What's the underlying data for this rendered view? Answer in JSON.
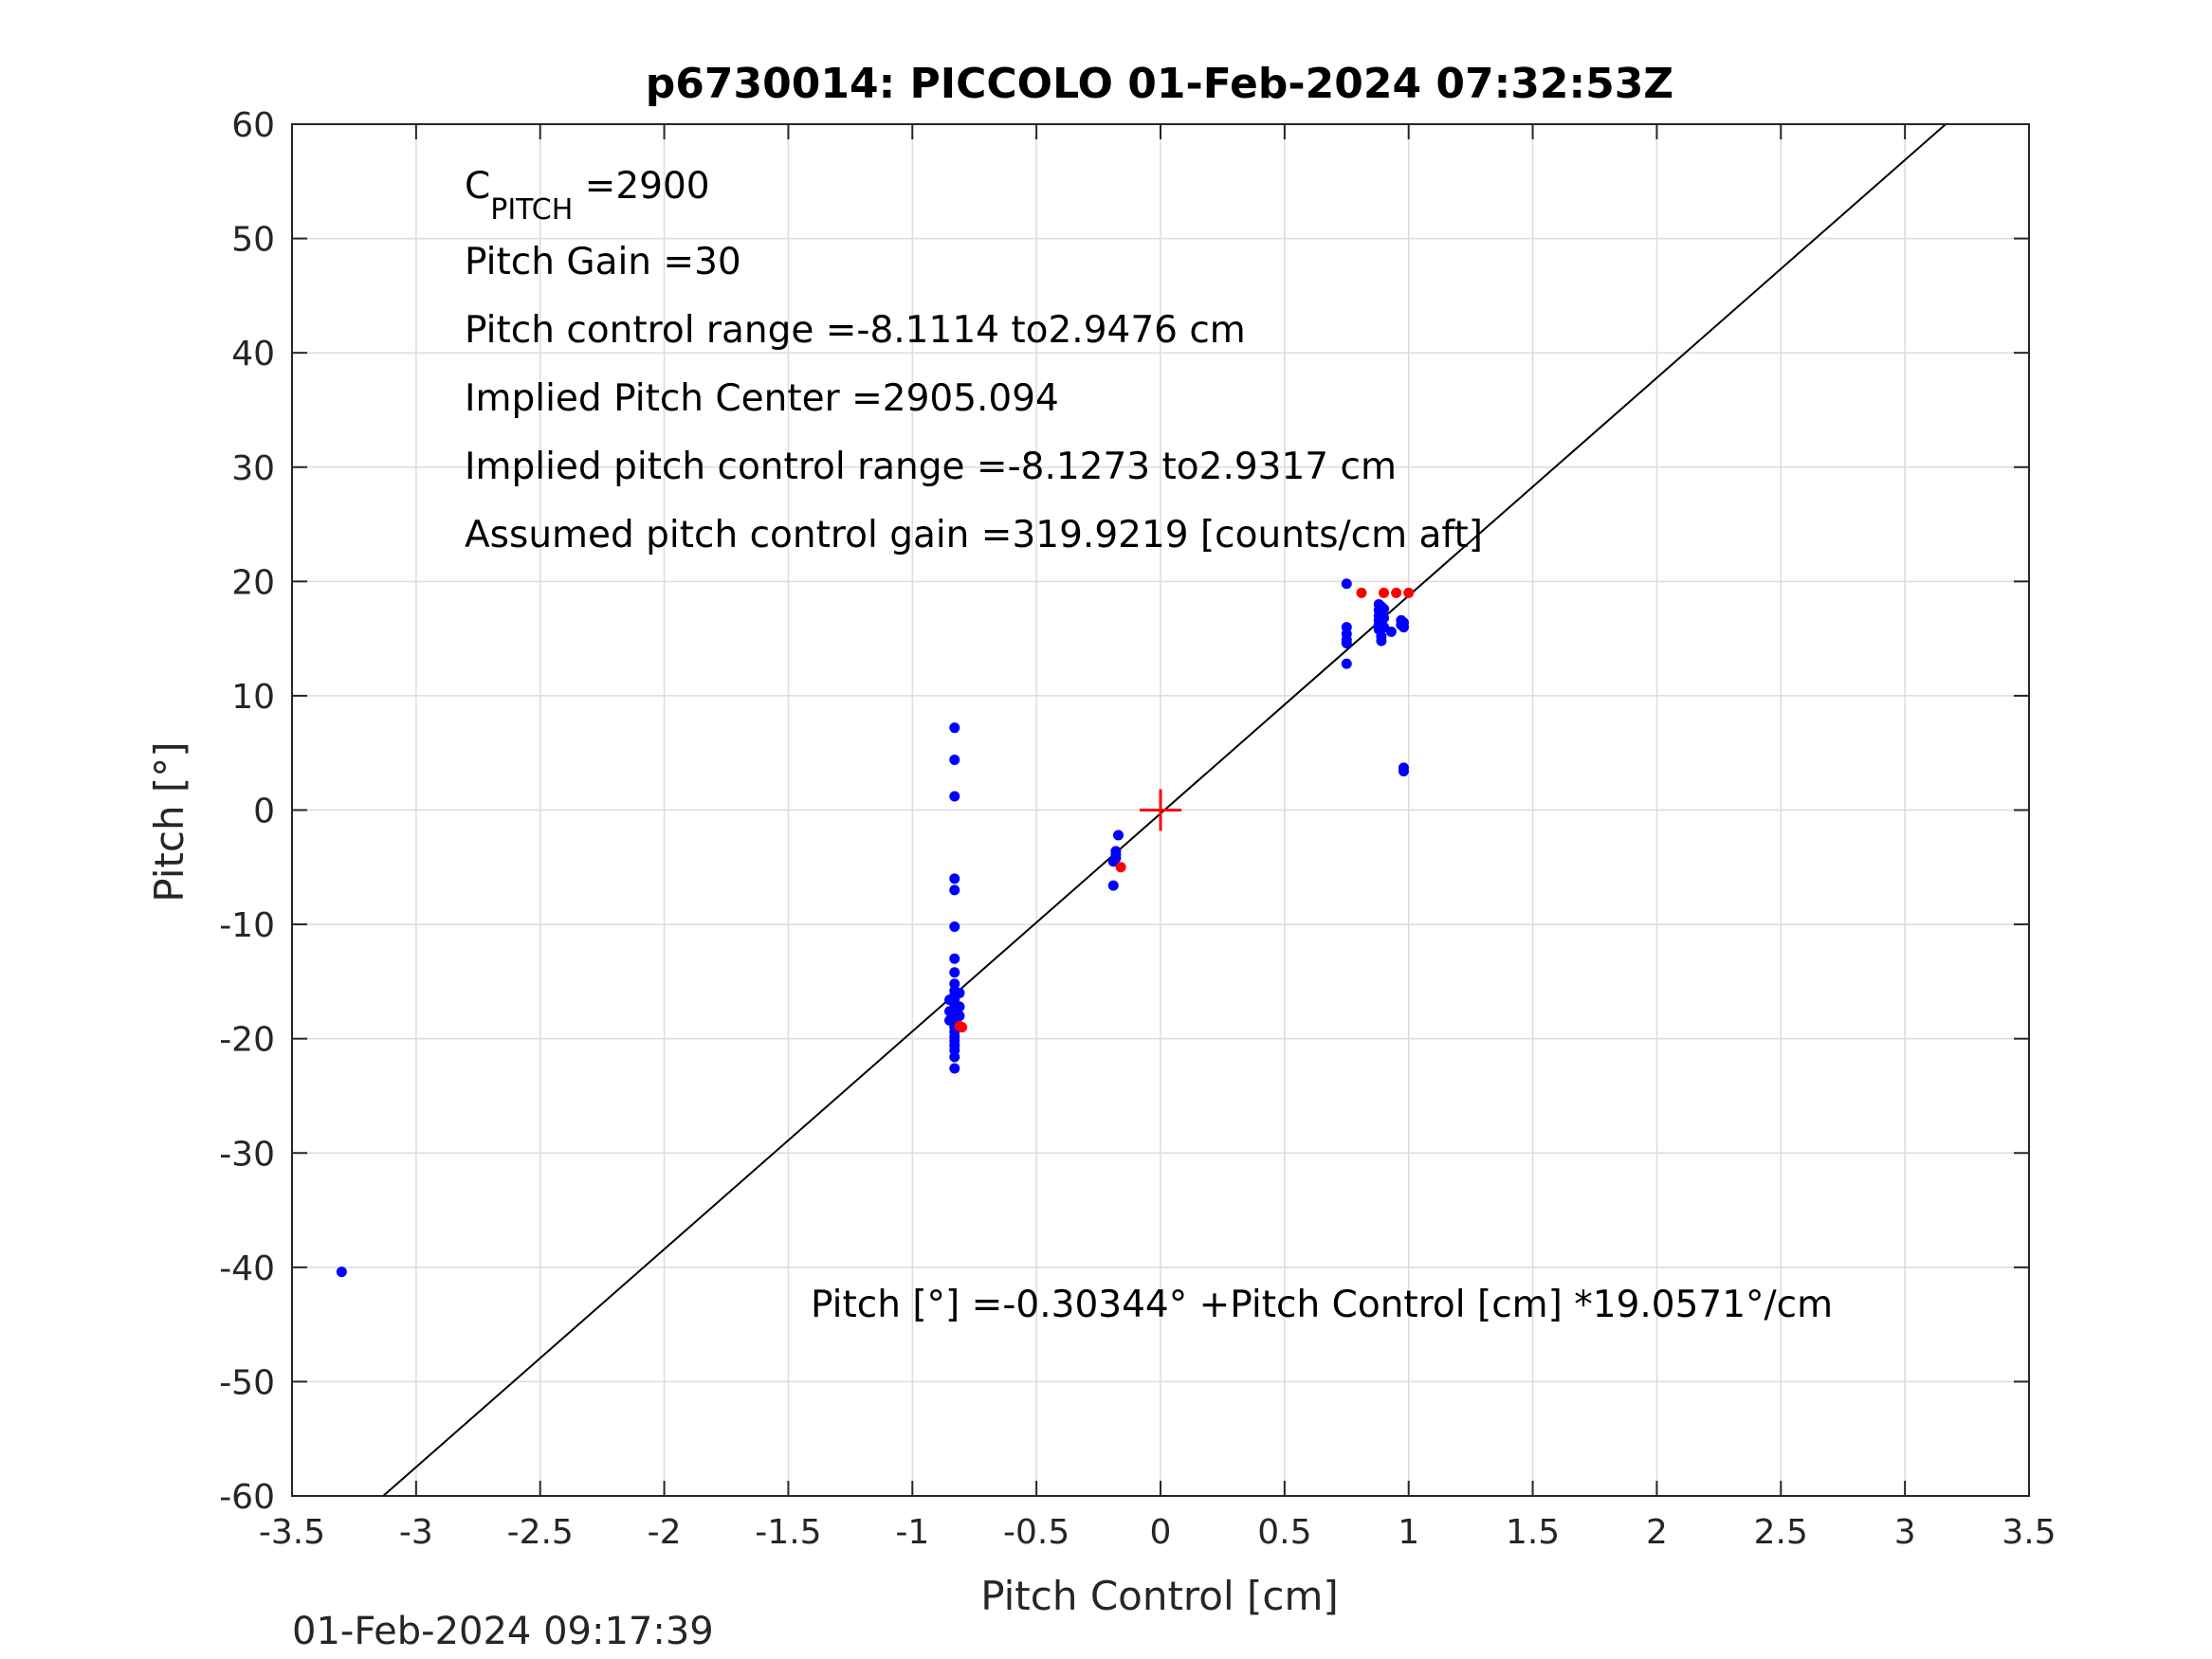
{
  "chart_data": {
    "type": "scatter",
    "title": "p6730014: PICCOLO 01-Feb-2024 07:32:53Z",
    "xlabel": "Pitch Control [cm]",
    "ylabel": "Pitch [°]",
    "xlim": [
      -3.5,
      3.5
    ],
    "ylim": [
      -60,
      60
    ],
    "xticks": [
      -3.5,
      -3,
      -2.5,
      -2,
      -1.5,
      -1,
      -0.5,
      0,
      0.5,
      1,
      1.5,
      2,
      2.5,
      3,
      3.5
    ],
    "yticks": [
      -60,
      -50,
      -40,
      -30,
      -20,
      -10,
      0,
      10,
      20,
      30,
      40,
      50,
      60
    ],
    "xtick_labels": [
      "-3.5",
      "-3",
      "-2.5",
      "-2",
      "-1.5",
      "-1",
      "-0.5",
      "0",
      "0.5",
      "1",
      "1.5",
      "2",
      "2.5",
      "3",
      "3.5"
    ],
    "ytick_labels": [
      "-60",
      "-50",
      "-40",
      "-30",
      "-20",
      "-10",
      "0",
      "10",
      "20",
      "30",
      "40",
      "50",
      "60"
    ],
    "grid": true,
    "annotations": {
      "c_pitch_main": "C",
      "c_pitch_sub": "PITCH",
      "c_pitch_value": " =2900",
      "pitch_gain": "Pitch Gain =30",
      "control_range": "Pitch control range =-8.1114 to2.9476 cm",
      "implied_center": "Implied Pitch Center =2905.094",
      "implied_range": "Implied pitch control range =-8.1273 to2.9317 cm",
      "assumed_gain": "Assumed pitch control gain =319.9219 [counts/cm aft]",
      "fit_equation": "Pitch [°] =-0.30344° +Pitch Control [cm] *19.0571°/cm"
    },
    "fit_line": {
      "intercept": -0.30344,
      "slope": 19.0571,
      "color": "#000000"
    },
    "center_marker": {
      "x": 0,
      "y": 0,
      "color": "#ff0000"
    },
    "series": [
      {
        "color": "#0000ff",
        "points": [
          [
            -3.3,
            -40.4
          ],
          [
            -0.83,
            7.2
          ],
          [
            -0.83,
            4.4
          ],
          [
            -0.83,
            1.2
          ],
          [
            -0.83,
            -6.0
          ],
          [
            -0.83,
            -7.0
          ],
          [
            -0.83,
            -10.2
          ],
          [
            -0.83,
            -13.0
          ],
          [
            -0.83,
            -14.2
          ],
          [
            -0.83,
            -15.2
          ],
          [
            -0.83,
            -15.8
          ],
          [
            -0.83,
            -16.2
          ],
          [
            -0.83,
            -16.6
          ],
          [
            -0.83,
            -17.0
          ],
          [
            -0.83,
            -17.4
          ],
          [
            -0.83,
            -17.8
          ],
          [
            -0.83,
            -18.2
          ],
          [
            -0.83,
            -18.6
          ],
          [
            -0.83,
            -19.0
          ],
          [
            -0.83,
            -19.4
          ],
          [
            -0.83,
            -19.8
          ],
          [
            -0.83,
            -20.2
          ],
          [
            -0.83,
            -20.6
          ],
          [
            -0.83,
            -21.0
          ],
          [
            -0.83,
            -21.6
          ],
          [
            -0.83,
            -22.6
          ],
          [
            -0.85,
            -16.6
          ],
          [
            -0.85,
            -17.6
          ],
          [
            -0.85,
            -18.4
          ],
          [
            -0.81,
            -16.0
          ],
          [
            -0.81,
            -17.2
          ],
          [
            -0.81,
            -18.0
          ],
          [
            -0.17,
            -2.2
          ],
          [
            -0.18,
            -3.6
          ],
          [
            -0.18,
            -3.9
          ],
          [
            -0.18,
            -4.2
          ],
          [
            -0.19,
            -4.5
          ],
          [
            -0.19,
            -6.6
          ],
          [
            0.75,
            19.8
          ],
          [
            0.75,
            16.0
          ],
          [
            0.75,
            15.4
          ],
          [
            0.75,
            14.9
          ],
          [
            0.75,
            14.6
          ],
          [
            0.75,
            12.8
          ],
          [
            0.88,
            18.0
          ],
          [
            0.88,
            17.5
          ],
          [
            0.88,
            17.0
          ],
          [
            0.88,
            16.6
          ],
          [
            0.88,
            16.2
          ],
          [
            0.88,
            15.8
          ],
          [
            0.89,
            17.8
          ],
          [
            0.89,
            17.2
          ],
          [
            0.89,
            16.4
          ],
          [
            0.89,
            15.2
          ],
          [
            0.89,
            14.8
          ],
          [
            0.9,
            17.6
          ],
          [
            0.9,
            16.8
          ],
          [
            0.9,
            16.0
          ],
          [
            0.93,
            15.6
          ],
          [
            0.97,
            16.6
          ],
          [
            0.97,
            16.2
          ],
          [
            0.98,
            16.4
          ],
          [
            0.98,
            16.0
          ],
          [
            0.98,
            3.7
          ],
          [
            0.98,
            3.4
          ]
        ]
      },
      {
        "color": "#ff0000",
        "points": [
          [
            -0.81,
            -18.9
          ],
          [
            -0.8,
            -19.0
          ],
          [
            -0.16,
            -5.0
          ],
          [
            0.81,
            19.0
          ],
          [
            0.9,
            19.0
          ],
          [
            0.95,
            19.0
          ],
          [
            1.0,
            19.0
          ]
        ]
      }
    ]
  },
  "footer": {
    "timestamp": "01-Feb-2024 09:17:39"
  }
}
